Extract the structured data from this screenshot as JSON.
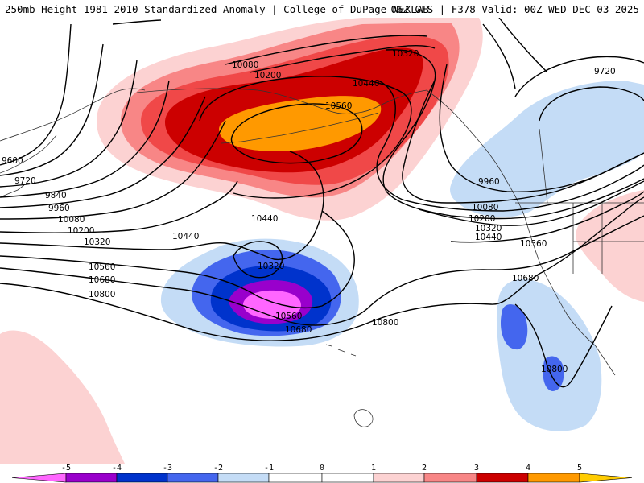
{
  "header": {
    "title_left": "250mb Height 1981-2010 Standardized Anomaly | College of DuPage NEXLAB",
    "title_right": "06Z GFS | F378 Valid: 00Z WED DEC 03 2025"
  },
  "colors": {
    "anomaly_neg5": "#ff66ff",
    "anomaly_neg4": "#9900cc",
    "anomaly_neg3": "#0033cc",
    "anomaly_neg2": "#4466ee",
    "anomaly_neg1": "#c4dcf6",
    "anomaly_pos1": "#fcd2d2",
    "anomaly_pos2": "#f88686",
    "anomaly_pos3": "#f04848",
    "anomaly_pos4": "#cc0000",
    "anomaly_pos5": "#ff9900",
    "contour": "#000000",
    "coastline": "#333333"
  },
  "contour_labels": [
    {
      "text": "10080"
    },
    {
      "text": "10200"
    },
    {
      "text": "10320"
    },
    {
      "text": "10440"
    },
    {
      "text": "10560"
    },
    {
      "text": "9720"
    },
    {
      "text": "9600"
    },
    {
      "text": "9720"
    },
    {
      "text": "9840"
    },
    {
      "text": "9960"
    },
    {
      "text": "10080"
    },
    {
      "text": "10200"
    },
    {
      "text": "10320"
    },
    {
      "text": "10440"
    },
    {
      "text": "10440"
    },
    {
      "text": "10320"
    },
    {
      "text": "10560"
    },
    {
      "text": "10680"
    },
    {
      "text": "10800"
    },
    {
      "text": "10560"
    },
    {
      "text": "10680"
    },
    {
      "text": "10800"
    },
    {
      "text": "9960"
    },
    {
      "text": "10080"
    },
    {
      "text": "10200"
    },
    {
      "text": "10320"
    },
    {
      "text": "10440"
    },
    {
      "text": "10560"
    },
    {
      "text": "10680"
    },
    {
      "text": "10800"
    }
  ],
  "colorbar": {
    "ticks": [
      "-5",
      "-4",
      "-3",
      "-2",
      "-1",
      "0",
      "1",
      "2",
      "3",
      "4",
      "5"
    ]
  }
}
